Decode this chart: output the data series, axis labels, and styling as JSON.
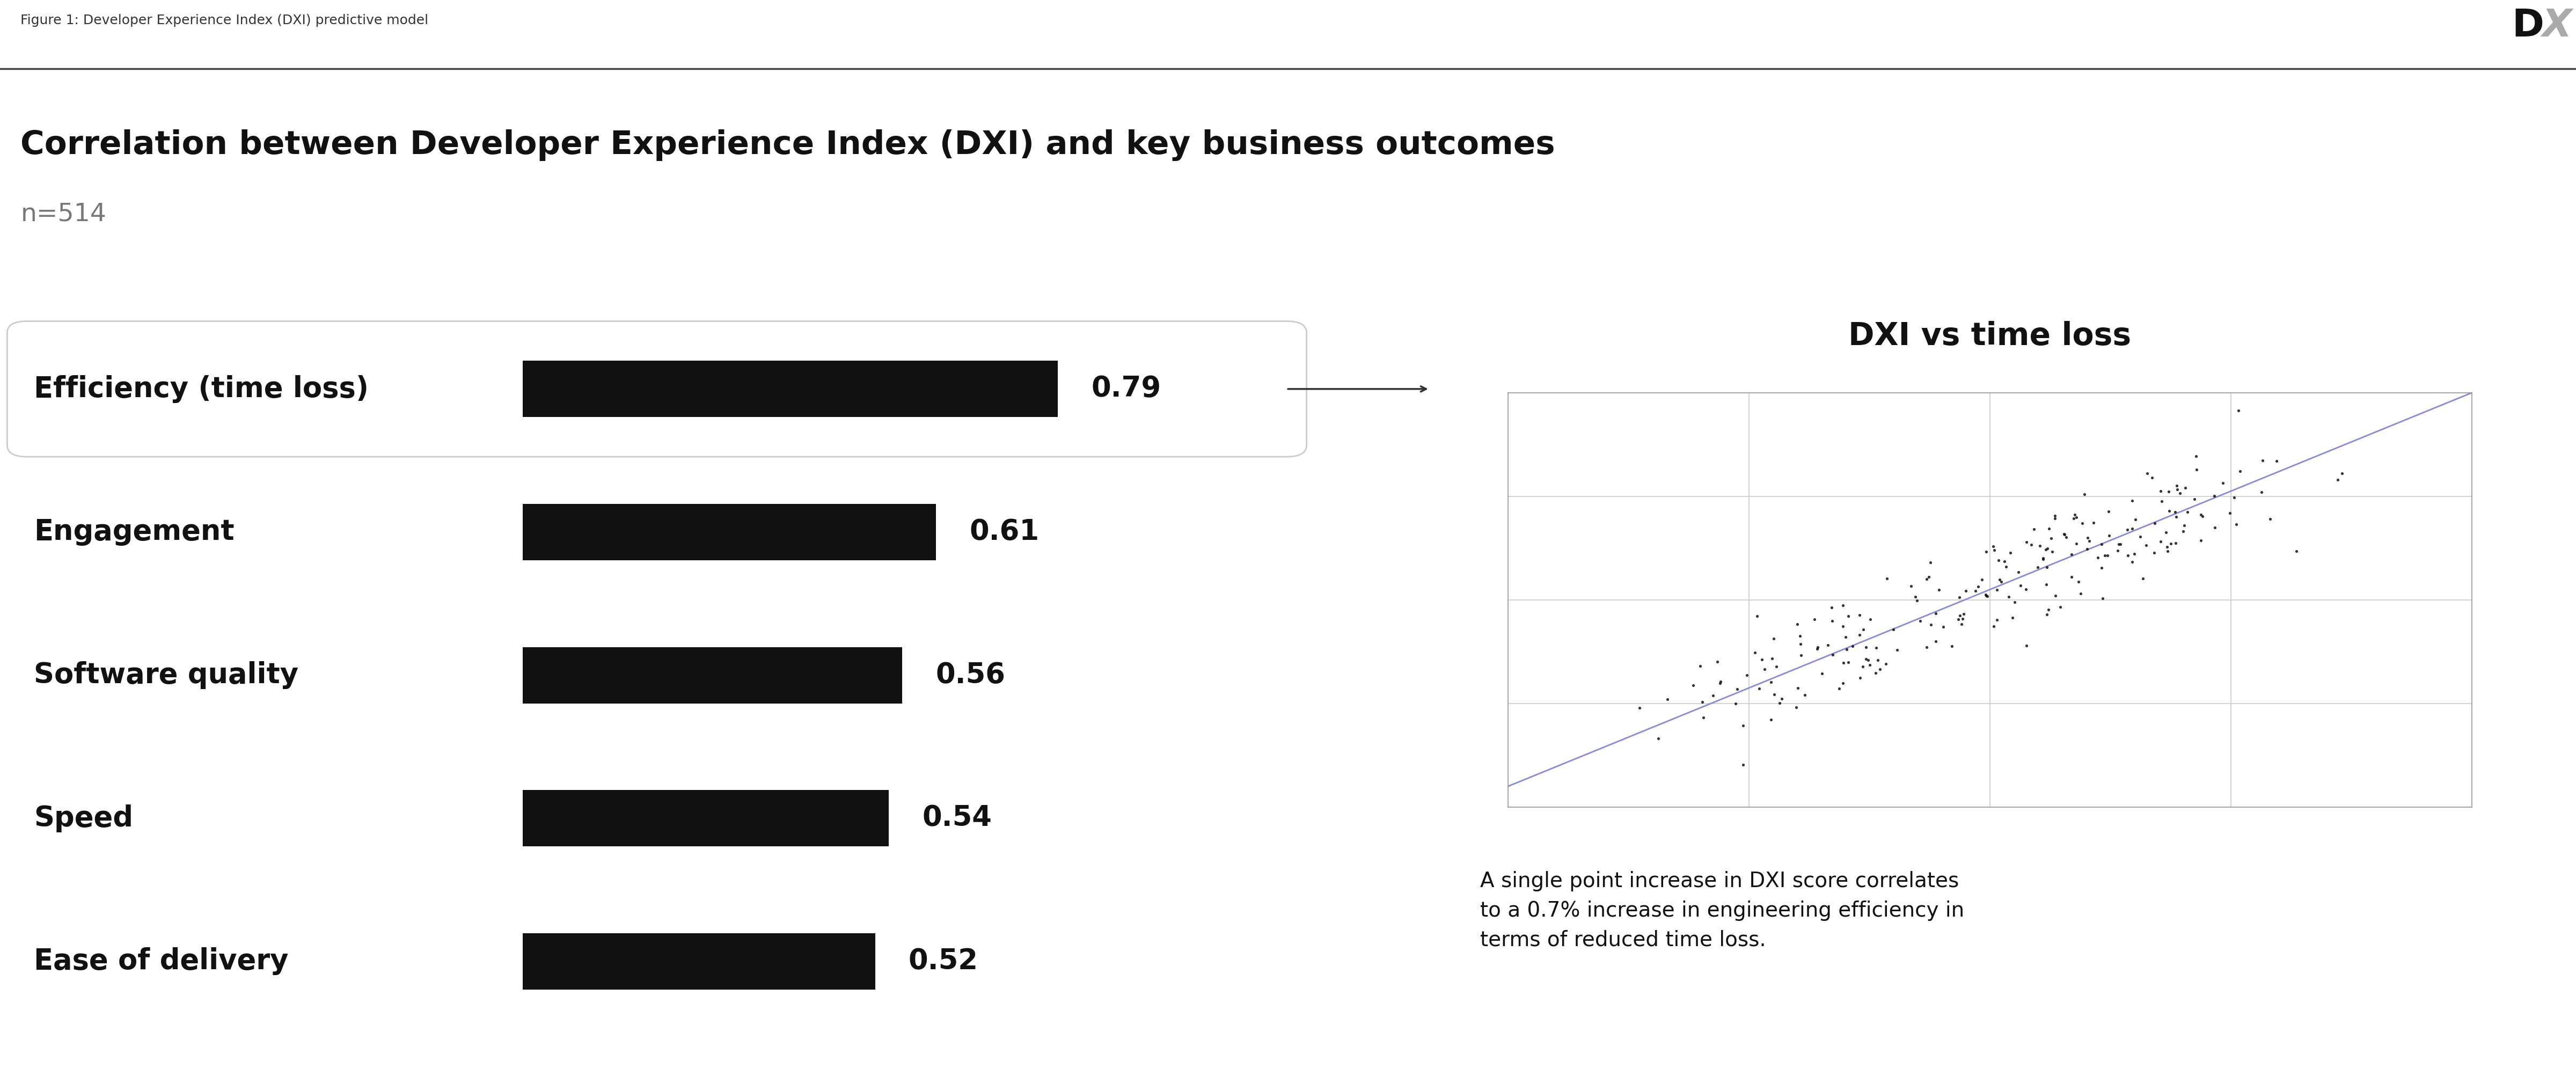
{
  "figure_label": "Figure 1: Developer Experience Index (DXI) predictive model",
  "title": "Correlation between Developer Experience Index (DXI) and key business outcomes",
  "subtitle": "n=514",
  "bar_categories": [
    "Efficiency (time loss)",
    "Engagement",
    "Software quality",
    "Speed",
    "Ease of delivery"
  ],
  "bar_values": [
    0.79,
    0.61,
    0.56,
    0.54,
    0.52
  ],
  "bar_color": "#111111",
  "highlighted_index": 0,
  "scatter_title": "DXI vs time loss",
  "scatter_annotation": "A single point increase in DXI score correlates\nto a 0.7% increase in engineering efficiency in\nterms of reduced time loss.",
  "background_color": "#ffffff",
  "text_color": "#111111",
  "subtitle_color": "#777777",
  "trend_line_color": "#8888dd",
  "bar_max": 0.9,
  "figure_label_color": "#333333",
  "logo_D_color": "#111111",
  "logo_X_color": "#aaaaaa",
  "border_color": "#cccccc",
  "grid_color": "#cccccc",
  "separator_color": "#444444"
}
